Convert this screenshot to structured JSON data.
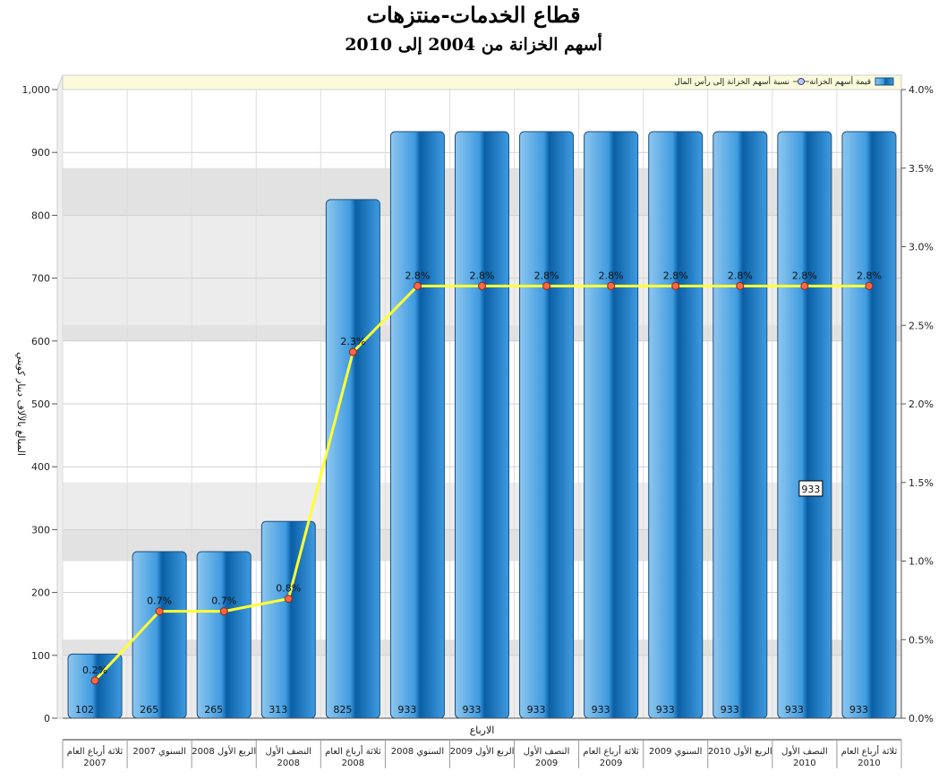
{
  "header": {
    "title": "قطاع الخدمات-منتزهات",
    "subtitle": "أسهم الخزانة من 2004 إلى 2010"
  },
  "colors": {
    "bar_light": "#8ec6ee",
    "bar_mid": "#3f9be0",
    "bar_dark": "#0a5fa5",
    "line": "#ffff33",
    "marker": "#ff6644",
    "band": "#ececec",
    "band_dark": "#e2e2e2"
  },
  "chart_data": {
    "type": "bar",
    "xlabel": "الارباع",
    "ylabel": "المبالغ بالآلاف دينار كويتي",
    "ylim": [
      0,
      1000
    ],
    "y2lim": [
      0,
      4
    ],
    "y_ticks": [
      "0",
      "100",
      "200",
      "300",
      "400",
      "500",
      "600",
      "700",
      "800",
      "900",
      "1,000"
    ],
    "y2_ticks": [
      "0.0%",
      "0.5%",
      "1.0%",
      "1.5%",
      "2.0%",
      "2.5%",
      "3.0%",
      "3.5%",
      "4.0%"
    ],
    "categories": [
      [
        "ثلاثة أرباع العام",
        "2007"
      ],
      [
        "السنوي 2007",
        ""
      ],
      [
        "الربع الأول 2008",
        ""
      ],
      [
        "النصف الأول",
        "2008"
      ],
      [
        "ثلاثة أرباع العام",
        "2008"
      ],
      [
        "السنوي 2008",
        ""
      ],
      [
        "الربع الأول 2009",
        ""
      ],
      [
        "النصف الأول",
        "2009"
      ],
      [
        "ثلاثة أرباع العام",
        "2009"
      ],
      [
        "السنوي 2009",
        ""
      ],
      [
        "الربع الأول 2010",
        ""
      ],
      [
        "النصف الأول",
        "2010"
      ],
      [
        "ثلاثة أرباع العام",
        "2010"
      ]
    ],
    "series": [
      {
        "name": "قيمة أسهم الخزانة",
        "type": "bar",
        "axis": "left",
        "values": [
          102,
          265,
          265,
          313,
          825,
          933,
          933,
          933,
          933,
          933,
          933,
          933,
          933
        ],
        "labels": [
          "102",
          "265",
          "265",
          "313",
          "825",
          "933",
          "933",
          "933",
          "933",
          "933",
          "933",
          "933",
          "933"
        ]
      },
      {
        "name": "نسبة أسهم الخزانة إلى رأس المال",
        "type": "line",
        "axis": "right",
        "values": [
          0.24,
          0.68,
          0.68,
          0.76,
          2.33,
          2.75,
          2.75,
          2.75,
          2.75,
          2.75,
          2.75,
          2.75,
          2.75
        ],
        "labels": [
          "0.2%",
          "0.7%",
          "0.7%",
          "0.8%",
          "2.3%",
          "2.8%",
          "2.8%",
          "2.8%",
          "2.8%",
          "2.8%",
          "2.8%",
          "2.8%",
          "2.8%"
        ]
      }
    ],
    "tooltip": {
      "index": 11,
      "text": "933"
    },
    "grid": true,
    "legend_position": "top-right"
  }
}
